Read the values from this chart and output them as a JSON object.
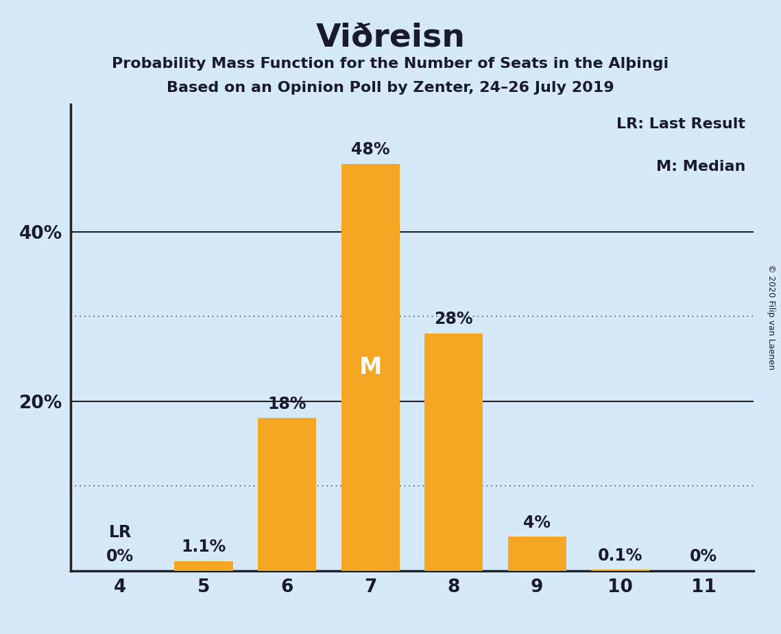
{
  "title": "Viðreisn",
  "subtitle1": "Probability Mass Function for the Number of Seats in the Alþingi",
  "subtitle2": "Based on an Opinion Poll by Zenter, 24–26 July 2019",
  "copyright": "© 2020 Filip van Laenen",
  "categories": [
    4,
    5,
    6,
    7,
    8,
    9,
    10,
    11
  ],
  "values": [
    0.0,
    1.1,
    18.0,
    48.0,
    28.0,
    4.0,
    0.1,
    0.0
  ],
  "labels": [
    "0%",
    "1.1%",
    "18%",
    "48%",
    "28%",
    "4%",
    "0.1%",
    "0%"
  ],
  "bar_color": "#F5A623",
  "bg_color": "#D6E9F8",
  "text_color": "#1a1a2e",
  "median_bar": 7,
  "median_label": "M",
  "lr_bar": 4,
  "lr_label": "LR",
  "legend_lr": "LR: Last Result",
  "legend_m": "M: Median",
  "ylim": [
    0,
    55
  ],
  "solid_yticks": [
    20,
    40
  ],
  "dotted_yticks": [
    10,
    30
  ],
  "bar_width": 0.7
}
